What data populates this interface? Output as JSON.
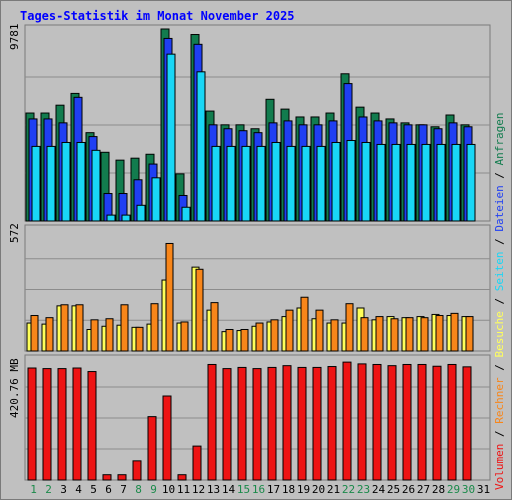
{
  "title": "Tages-Statistik im Monat November 2025",
  "colors": {
    "background": "#c0c0c0",
    "title": "#0000ff",
    "anfragen": "#127c4e",
    "dateien": "#1f3ff3",
    "seiten": "#19d6f6",
    "besuche": "#ffff5a",
    "rechner": "#f8861a",
    "volumen": "#ee1414",
    "weekday_label": "#000000",
    "weekend_label": "#1a8a4a"
  },
  "chart_data": [
    {
      "type": "bar",
      "panel": "top",
      "ymax_label": "9781",
      "ymax": 9781,
      "categories": [
        "1",
        "2",
        "3",
        "4",
        "5",
        "6",
        "7",
        "8",
        "9",
        "10",
        "11",
        "12",
        "13",
        "14",
        "15",
        "16",
        "17",
        "18",
        "19",
        "20",
        "21",
        "22",
        "23",
        "24",
        "25",
        "26",
        "27",
        "28",
        "29",
        "30",
        "31"
      ],
      "weekend_days": [
        "1",
        "2",
        "8",
        "9",
        "15",
        "16",
        "22",
        "23",
        "29",
        "30"
      ],
      "series": [
        {
          "name": "Anfragen",
          "values": [
            5500,
            5500,
            5900,
            6500,
            4500,
            3500,
            3100,
            3200,
            3400,
            9781,
            2400,
            9500,
            5600,
            4900,
            4900,
            4700,
            6200,
            5700,
            5300,
            5300,
            5500,
            7500,
            5800,
            5500,
            5200,
            5000,
            4900,
            4800,
            5400,
            4900,
            0
          ]
        },
        {
          "name": "Dateien",
          "values": [
            5200,
            5200,
            5000,
            6300,
            4300,
            1400,
            1400,
            2100,
            2900,
            9300,
            1300,
            9000,
            4900,
            4700,
            4600,
            4500,
            5000,
            5100,
            4900,
            4900,
            5100,
            7000,
            5300,
            5100,
            5000,
            4900,
            4900,
            4700,
            5000,
            4800,
            0
          ]
        },
        {
          "name": "Seiten",
          "values": [
            3800,
            3800,
            4000,
            4000,
            3600,
            300,
            300,
            800,
            2200,
            8500,
            700,
            7600,
            3800,
            3800,
            3800,
            3800,
            4000,
            3800,
            3800,
            3800,
            4000,
            4100,
            4000,
            3900,
            3900,
            3900,
            3900,
            3900,
            3900,
            3900,
            0
          ]
        }
      ]
    },
    {
      "type": "bar",
      "panel": "middle",
      "ymax_label": "572",
      "ymax": 572,
      "series": [
        {
          "name": "Besuche",
          "values": [
            130,
            125,
            210,
            210,
            100,
            115,
            120,
            110,
            125,
            330,
            130,
            390,
            190,
            90,
            95,
            115,
            135,
            160,
            200,
            150,
            130,
            130,
            200,
            145,
            160,
            155,
            160,
            170,
            165,
            160,
            0
          ]
        },
        {
          "name": "Rechner",
          "values": [
            165,
            155,
            215,
            215,
            145,
            150,
            215,
            110,
            220,
            500,
            135,
            380,
            225,
            100,
            100,
            130,
            145,
            190,
            250,
            190,
            145,
            220,
            155,
            160,
            150,
            155,
            155,
            165,
            175,
            160,
            0
          ]
        }
      ]
    },
    {
      "type": "bar",
      "panel": "bottom",
      "ymax_label": "420.76 MB",
      "ymax": 420.76,
      "series": [
        {
          "name": "Volumen",
          "values": [
            380,
            378,
            378,
            380,
            368,
            18,
            18,
            65,
            215,
            285,
            18,
            115,
            392,
            378,
            382,
            378,
            382,
            388,
            382,
            382,
            385,
            400,
            394,
            392,
            388,
            392,
            392,
            386,
            392,
            384,
            0
          ]
        }
      ]
    }
  ],
  "legend_groups": [
    {
      "label": "Volumen",
      "color_key": "volumen"
    },
    {
      "label": "Rechner",
      "color_key": "rechner"
    },
    {
      "label": "Besuche",
      "color_key": "besuche"
    },
    {
      "label": "Seiten",
      "color_key": "seiten"
    },
    {
      "label": "Dateien",
      "color_key": "dateien"
    },
    {
      "label": "Anfragen",
      "color_key": "anfragen"
    }
  ],
  "legend_separator": " / "
}
